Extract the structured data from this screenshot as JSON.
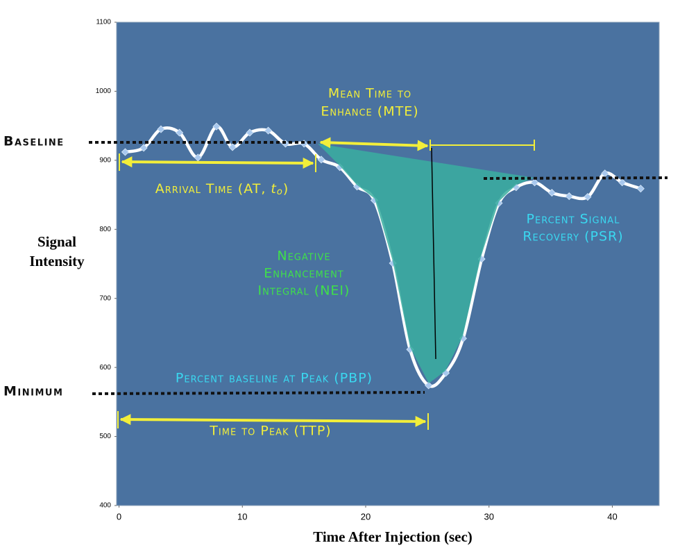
{
  "chart_data": {
    "type": "line",
    "x_label": "Time After Injection (sec)",
    "y_label": [
      "Signal",
      "Intensity"
    ],
    "xlim": [
      -0.2,
      43.8
    ],
    "ylim": [
      400,
      1100
    ],
    "xticks": [
      0,
      10,
      20,
      30,
      40
    ],
    "yticks": [
      400,
      500,
      600,
      700,
      800,
      900,
      1000,
      1100
    ],
    "background": "#4a72a0",
    "x": [
      0.5,
      2.0,
      3.4,
      4.9,
      6.4,
      7.9,
      9.2,
      10.6,
      12.1,
      13.5,
      15.0,
      16.4,
      17.9,
      19.3,
      20.7,
      22.2,
      23.6,
      25.1,
      26.5,
      27.9,
      29.4,
      30.8,
      32.2,
      33.7,
      35.1,
      36.5,
      38.0,
      39.4,
      40.8,
      42.3
    ],
    "series": [
      {
        "color": "#ffffff",
        "marker_color": "#a8c8ee",
        "values": [
          912,
          918,
          945,
          940,
          904,
          949,
          919,
          940,
          943,
          924,
          924,
          901,
          890,
          862,
          842,
          751,
          626,
          574,
          592,
          642,
          757,
          838,
          861,
          868,
          853,
          848,
          847,
          881,
          868,
          859
        ]
      }
    ],
    "labels": {
      "baseline": "Baseline",
      "minimum": "Minimum"
    },
    "annotations": {
      "mte": {
        "lines": [
          "Mean Time to",
          "Enhance (MTE)"
        ],
        "color": "#f2ee3a"
      },
      "at": {
        "text": "Arrival Time (AT, ",
        "symbol": "t",
        "subscript": "o",
        "end": ")",
        "color": "#f2ee3a"
      },
      "nei": {
        "lines": [
          "Negative",
          "Enhancement",
          "Integral (NEI)"
        ],
        "color": "#3fe04a"
      },
      "psr": {
        "lines": [
          "Percent Signal",
          "Recovery (PSR)"
        ],
        "color": "#3ad8f0"
      },
      "pbp": {
        "lines": [
          "Percent baseline at Peak (PBP)"
        ],
        "color": "#3ad8f0"
      },
      "ttp": {
        "lines": [
          "Time to Peak (TTP)"
        ],
        "color": "#f2ee3a"
      }
    }
  }
}
